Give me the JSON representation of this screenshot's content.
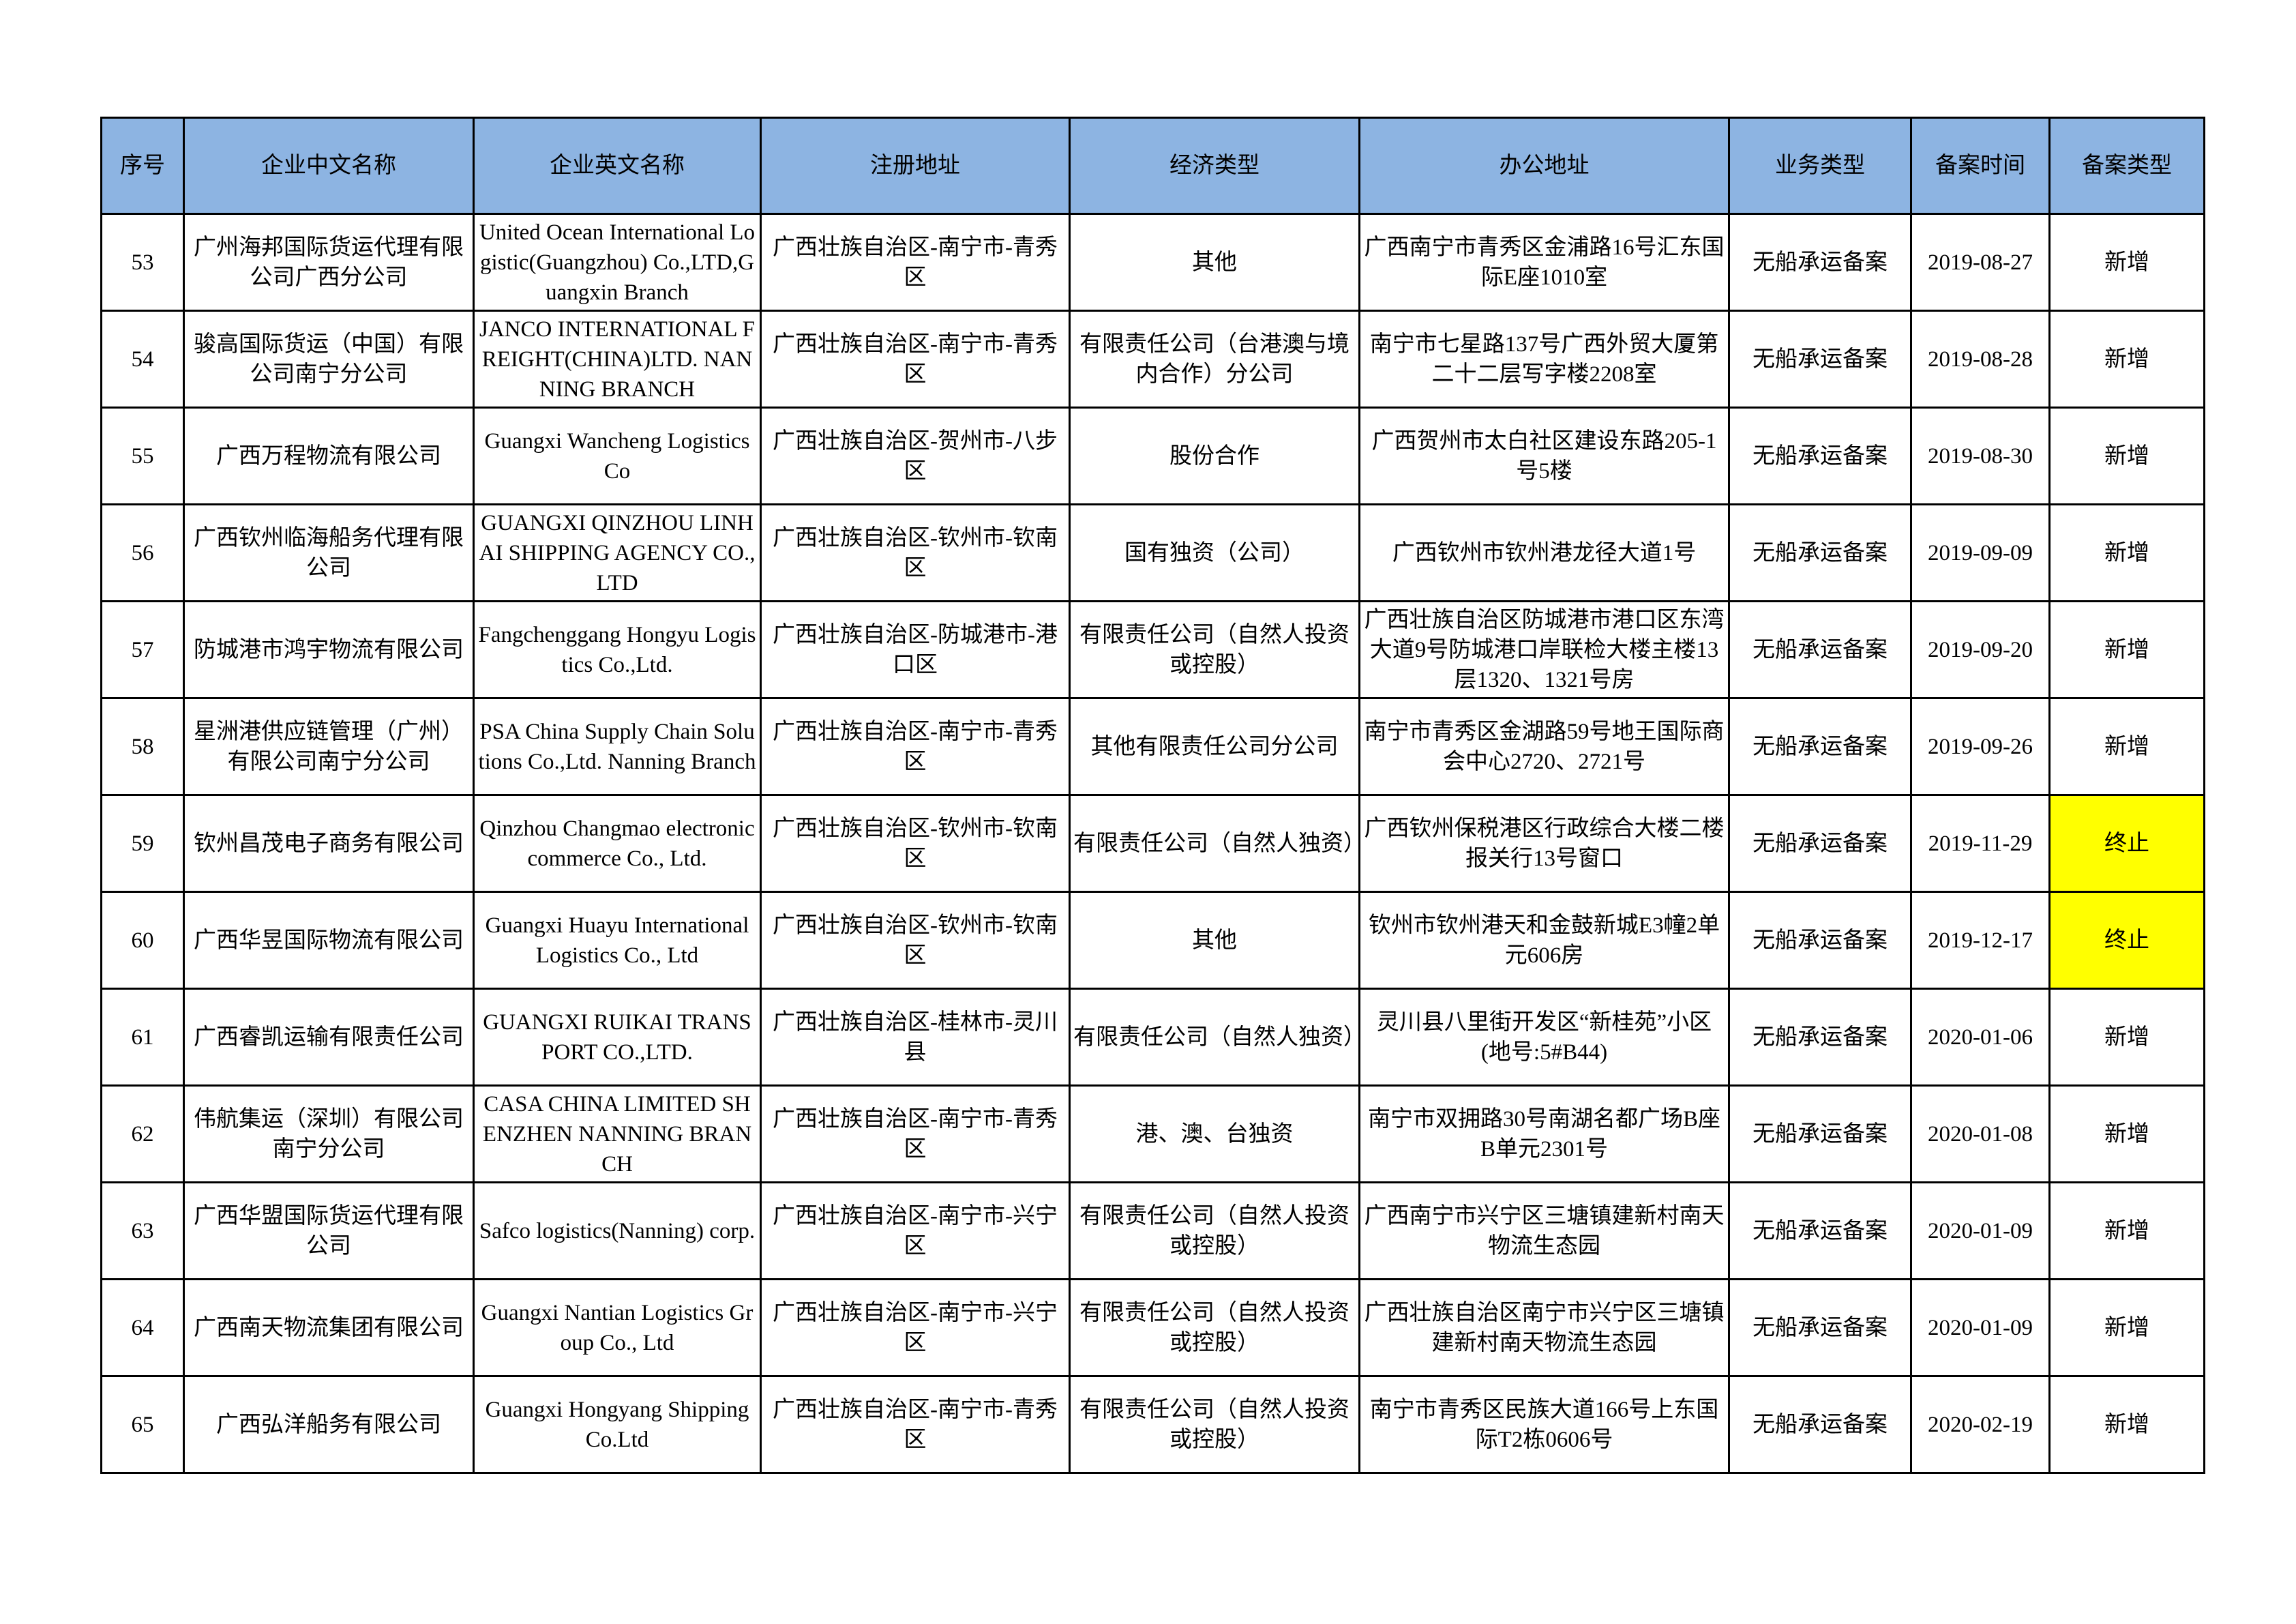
{
  "table": {
    "headers": [
      "序号",
      "企业中文名称",
      "企业英文名称",
      "注册地址",
      "经济类型",
      "办公地址",
      "业务类型",
      "备案时间",
      "备案类型"
    ],
    "highlight_color": "#FFFF00",
    "header_color": "#8DB4E2",
    "rows": [
      [
        "53",
        "广州海邦国际货运代理有限公司广西分公司",
        "United Ocean International Logistic(Guangzhou) Co.,LTD,Guangxin Branch",
        "广西壮族自治区-南宁市-青秀区",
        "其他",
        "广西南宁市青秀区金浦路16号汇东国际E座1010室",
        "无船承运备案",
        "2019-08-27",
        "新增"
      ],
      [
        "54",
        "骏高国际货运（中国）有限公司南宁分公司",
        "JANCO INTERNATIONAL FREIGHT(CHINA)LTD. NANNING BRANCH",
        "广西壮族自治区-南宁市-青秀区",
        "有限责任公司（台港澳与境内合作）分公司",
        "南宁市七星路137号广西外贸大厦第二十二层写字楼2208室",
        "无船承运备案",
        "2019-08-28",
        "新增"
      ],
      [
        "55",
        "广西万程物流有限公司",
        "Guangxi Wancheng Logistics Co",
        "广西壮族自治区-贺州市-八步区",
        "股份合作",
        "广西贺州市太白社区建设东路205-1号5楼",
        "无船承运备案",
        "2019-08-30",
        "新增"
      ],
      [
        "56",
        "广西钦州临海船务代理有限公司",
        "GUANGXI QINZHOU LINHAI SHIPPING AGENCY CO.,LTD",
        "广西壮族自治区-钦州市-钦南区",
        "国有独资（公司）",
        "广西钦州市钦州港龙径大道1号",
        "无船承运备案",
        "2019-09-09",
        "新增"
      ],
      [
        "57",
        "防城港市鸿宇物流有限公司",
        "Fangchenggang Hongyu Logistics Co.,Ltd.",
        "广西壮族自治区-防城港市-港口区",
        "有限责任公司（自然人投资或控股）",
        "广西壮族自治区防城港市港口区东湾大道9号防城港口岸联检大楼主楼13层1320、1321号房",
        "无船承运备案",
        "2019-09-20",
        "新增"
      ],
      [
        "58",
        "星洲港供应链管理（广州）有限公司南宁分公司",
        "PSA China Supply Chain Solutions Co.,Ltd. Nanning Branch",
        "广西壮族自治区-南宁市-青秀区",
        "其他有限责任公司分公司",
        "南宁市青秀区金湖路59号地王国际商会中心2720、2721号",
        "无船承运备案",
        "2019-09-26",
        "新增"
      ],
      [
        "59",
        "钦州昌茂电子商务有限公司",
        "Qinzhou Changmao electronic commerce Co., Ltd.",
        "广西壮族自治区-钦州市-钦南区",
        "有限责任公司（自然人独资）",
        "广西钦州保税港区行政综合大楼二楼报关行13号窗口",
        "无船承运备案",
        "2019-11-29",
        "终止"
      ],
      [
        "60",
        "广西华昱国际物流有限公司",
        "Guangxi Huayu International Logistics Co., Ltd",
        "广西壮族自治区-钦州市-钦南区",
        "其他",
        "钦州市钦州港天和金鼓新城E3幢2单元606房",
        "无船承运备案",
        "2019-12-17",
        "终止"
      ],
      [
        "61",
        "广西睿凯运输有限责任公司",
        "GUANGXI RUIKAI TRANSPORT CO.,LTD.",
        "广西壮族自治区-桂林市-灵川县",
        "有限责任公司（自然人独资）",
        "灵川县八里街开发区“新桂苑”小区(地号:5#B44)",
        "无船承运备案",
        "2020-01-06",
        "新增"
      ],
      [
        "62",
        "伟航集运（深圳）有限公司南宁分公司",
        "CASA CHINA LIMITED SHENZHEN NANNING BRANCH",
        "广西壮族自治区-南宁市-青秀区",
        "港、澳、台独资",
        "南宁市双拥路30号南湖名都广场B座B单元2301号",
        "无船承运备案",
        "2020-01-08",
        "新增"
      ],
      [
        "63",
        "广西华盟国际货运代理有限公司",
        "Safco logistics(Nanning) corp.",
        "广西壮族自治区-南宁市-兴宁区",
        "有限责任公司（自然人投资或控股）",
        "广西南宁市兴宁区三塘镇建新村南天物流生态园",
        "无船承运备案",
        "2020-01-09",
        "新增"
      ],
      [
        "64",
        "广西南天物流集团有限公司",
        "Guangxi Nantian Logistics Group Co., Ltd",
        "广西壮族自治区-南宁市-兴宁区",
        "有限责任公司（自然人投资或控股）",
        "广西壮族自治区南宁市兴宁区三塘镇建新村南天物流生态园",
        "无船承运备案",
        "2020-01-09",
        "新增"
      ],
      [
        "65",
        "广西弘洋船务有限公司",
        "Guangxi Hongyang Shipping Co.Ltd",
        "广西壮族自治区-南宁市-青秀区",
        "有限责任公司（自然人投资或控股）",
        "南宁市青秀区民族大道166号上东国际T2栋0606号",
        "无船承运备案",
        "2020-02-19",
        "新增"
      ]
    ]
  }
}
